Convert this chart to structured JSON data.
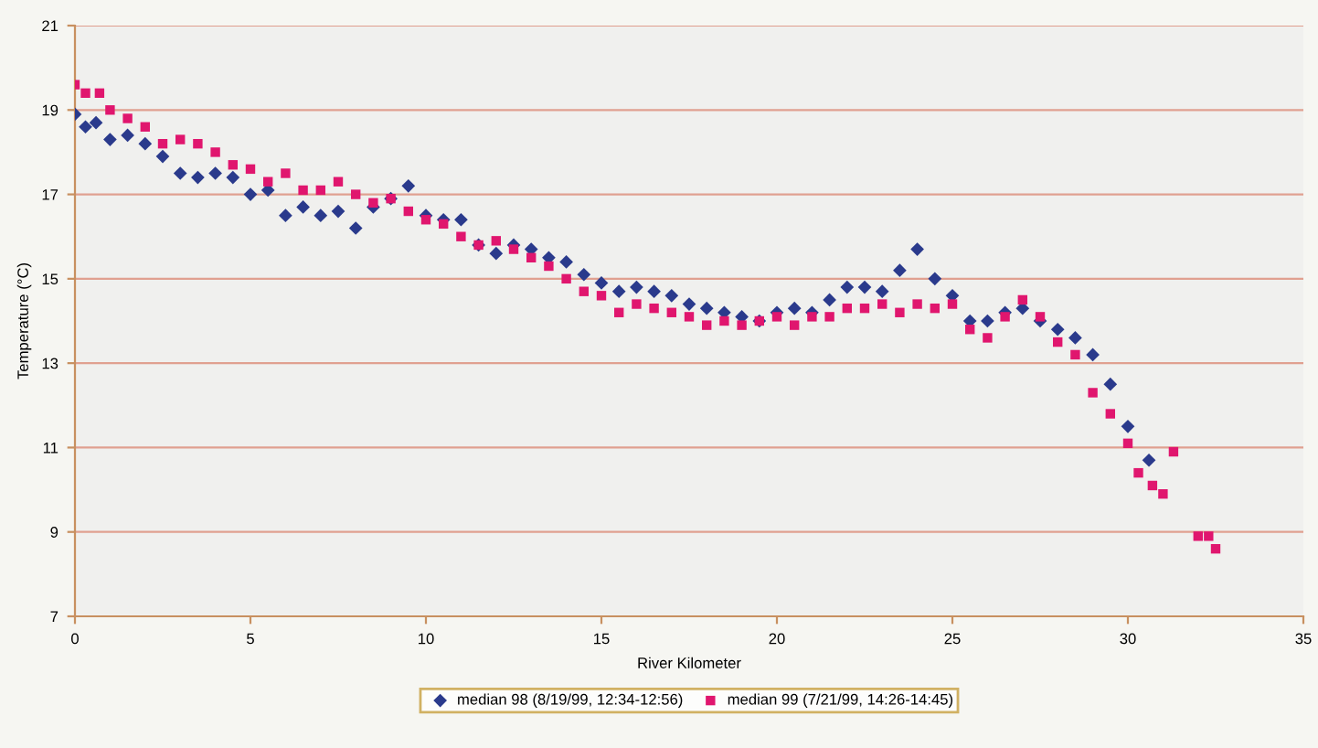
{
  "chart_data": {
    "type": "scatter",
    "xlabel": "River Kilometer",
    "ylabel": "Temperature (°C)",
    "xlim": [
      0,
      35
    ],
    "xticks": [
      0,
      5,
      10,
      15,
      20,
      25,
      30,
      35
    ],
    "ylim": [
      7,
      21
    ],
    "yticks": [
      7,
      9,
      11,
      13,
      15,
      17,
      19,
      21
    ],
    "grid": "y",
    "legend": "bottom",
    "series": [
      {
        "name": "median 98 (8/19/99, 12:34-12:56)",
        "color": "#2a3a8c",
        "marker": "diamond",
        "x": [
          0,
          0.3,
          0.6,
          1,
          1.5,
          2,
          2.5,
          3,
          3.5,
          4,
          4.5,
          5,
          5.5,
          6,
          6.5,
          7,
          7.5,
          8,
          8.5,
          9,
          9.5,
          10,
          10.5,
          11,
          11.5,
          12,
          12.5,
          13,
          13.5,
          14,
          14.5,
          15,
          15.5,
          16,
          16.5,
          17,
          17.5,
          18,
          18.5,
          19,
          19.5,
          20,
          20.5,
          21,
          21.5,
          22,
          22.5,
          23,
          23.5,
          24,
          24.5,
          25,
          25.5,
          26,
          26.5,
          27,
          27.5,
          28,
          28.5,
          29,
          29.5,
          30,
          30.6
        ],
        "values": [
          18.9,
          18.6,
          18.7,
          18.3,
          18.4,
          18.2,
          17.9,
          17.5,
          17.4,
          17.5,
          17.4,
          17.0,
          17.1,
          16.5,
          16.7,
          16.5,
          16.6,
          16.2,
          16.7,
          16.9,
          17.2,
          16.5,
          16.4,
          16.4,
          15.8,
          15.6,
          15.8,
          15.7,
          15.5,
          15.4,
          15.1,
          14.9,
          14.7,
          14.8,
          14.7,
          14.6,
          14.4,
          14.3,
          14.2,
          14.1,
          14.0,
          14.2,
          14.3,
          14.2,
          14.5,
          14.8,
          14.8,
          14.7,
          15.2,
          15.7,
          15.0,
          14.6,
          14.0,
          14.0,
          14.2,
          14.3,
          14.0,
          13.8,
          13.6,
          13.2,
          12.5,
          11.5,
          10.7
        ]
      },
      {
        "name": "median 99 (7/21/99, 14:26-14:45)",
        "color": "#e0166e",
        "marker": "square",
        "x": [
          0,
          0.3,
          0.7,
          1,
          1.5,
          2,
          2.5,
          3,
          3.5,
          4,
          4.5,
          5,
          5.5,
          6,
          6.5,
          7,
          7.5,
          8,
          8.5,
          9,
          9.5,
          10,
          10.5,
          11,
          11.5,
          12,
          12.5,
          13,
          13.5,
          14,
          14.5,
          15,
          15.5,
          16,
          16.5,
          17,
          17.5,
          18,
          18.5,
          19,
          19.5,
          20,
          20.5,
          21,
          21.5,
          22,
          22.5,
          23,
          23.5,
          24,
          24.5,
          25,
          25.5,
          26,
          26.5,
          27,
          27.5,
          28,
          28.5,
          29,
          29.5,
          30,
          30.3,
          30.7,
          31,
          31.3,
          32,
          32.3,
          32.5
        ],
        "values": [
          19.6,
          19.4,
          19.4,
          19.0,
          18.8,
          18.6,
          18.2,
          18.3,
          18.2,
          18.0,
          17.7,
          17.6,
          17.3,
          17.5,
          17.1,
          17.1,
          17.3,
          17.0,
          16.8,
          16.9,
          16.6,
          16.4,
          16.3,
          16.0,
          15.8,
          15.9,
          15.7,
          15.5,
          15.3,
          15.0,
          14.7,
          14.6,
          14.2,
          14.4,
          14.3,
          14.2,
          14.1,
          13.9,
          14.0,
          13.9,
          14.0,
          14.1,
          13.9,
          14.1,
          14.1,
          14.3,
          14.3,
          14.4,
          14.2,
          14.4,
          14.3,
          14.4,
          13.8,
          13.6,
          14.1,
          14.5,
          14.1,
          13.5,
          13.2,
          12.3,
          11.8,
          11.1,
          10.4,
          10.1,
          9.9,
          10.9,
          8.9,
          8.9,
          8.6
        ]
      }
    ]
  }
}
